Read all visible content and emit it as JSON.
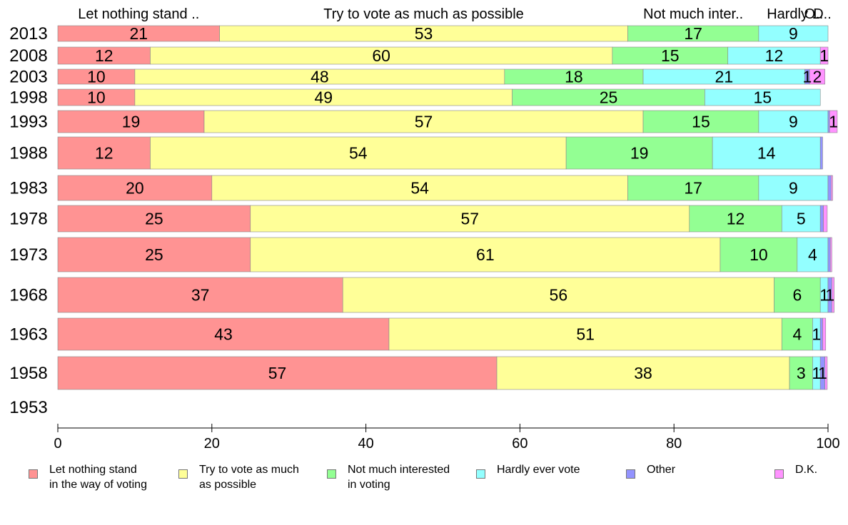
{
  "chart_data": {
    "type": "bar",
    "orientation": "horizontal",
    "stacked": true,
    "categories": [
      "2013",
      "2008",
      "2003",
      "1998",
      "1993",
      "1988",
      "1983",
      "1978",
      "1973",
      "1968",
      "1963",
      "1958",
      "1953"
    ],
    "series": [
      {
        "name": "Let nothing stand in the way of voting",
        "header": "Let nothing stand ..",
        "color": "#ff9393",
        "values": [
          21,
          12,
          10,
          10,
          19,
          12,
          20,
          25,
          25,
          37,
          43,
          57,
          null
        ],
        "labels": [
          "21",
          "12",
          "10",
          "10",
          "19",
          "12",
          "20",
          "25",
          "25",
          "37",
          "43",
          "57",
          ""
        ]
      },
      {
        "name": "Try to vote as much as possible",
        "header": "Try to vote as much as possible",
        "color": "#ffff98",
        "values": [
          53,
          60,
          48,
          49,
          57,
          54,
          54,
          57,
          61,
          56,
          51,
          38,
          null
        ],
        "labels": [
          "53",
          "60",
          "48",
          "49",
          "57",
          "54",
          "54",
          "57",
          "61",
          "56",
          "51",
          "38",
          ""
        ]
      },
      {
        "name": "Not much interested in voting",
        "header": "Not much inter..",
        "color": "#93ff93",
        "values": [
          17,
          15,
          18,
          25,
          15,
          19,
          17,
          12,
          10,
          6,
          4,
          3,
          null
        ],
        "labels": [
          "17",
          "15",
          "18",
          "25",
          "15",
          "19",
          "17",
          "12",
          "10",
          "6",
          "4",
          "3",
          ""
        ]
      },
      {
        "name": "Hardly ever vote",
        "header": "Hardly ..",
        "color": "#93ffff",
        "values": [
          9,
          12,
          21,
          15,
          9,
          14,
          9,
          5,
          4,
          1,
          1,
          1,
          null
        ],
        "labels": [
          "9",
          "12",
          "21",
          "15",
          "9",
          "14",
          "9",
          "5",
          "4",
          "1",
          "1",
          "1",
          ""
        ]
      },
      {
        "name": "Other",
        "header": "O..",
        "color": "#9393ff",
        "values": [
          0,
          0,
          0.6,
          0,
          0.2,
          0.3,
          0.4,
          0.4,
          0.3,
          0.5,
          0.3,
          0.6,
          null
        ],
        "labels": [
          "",
          "",
          "1",
          "",
          "",
          "",
          "",
          "",
          "",
          "1",
          "",
          "1",
          ""
        ]
      },
      {
        "name": "D.K.",
        "header": "D..",
        "color": "#ff93ff",
        "values": [
          0,
          1,
          2,
          0,
          1,
          0,
          0.2,
          0.5,
          0.2,
          0.3,
          0.4,
          0.3,
          null
        ],
        "labels": [
          "",
          "1",
          "2",
          "",
          "1",
          "",
          "",
          "",
          "",
          "",
          "",
          "",
          ""
        ]
      }
    ],
    "xlim": [
      0,
      100
    ],
    "xticks": [
      "0",
      "20",
      "40",
      "60",
      "80",
      "100"
    ],
    "legend": {
      "position": "bottom",
      "labels": [
        "Let nothing stand\nin the way of voting",
        "Try to vote as much\nas possible",
        "Not much interested\nin voting",
        "Hardly ever vote",
        "Other",
        "D.K."
      ]
    },
    "grid": false
  }
}
